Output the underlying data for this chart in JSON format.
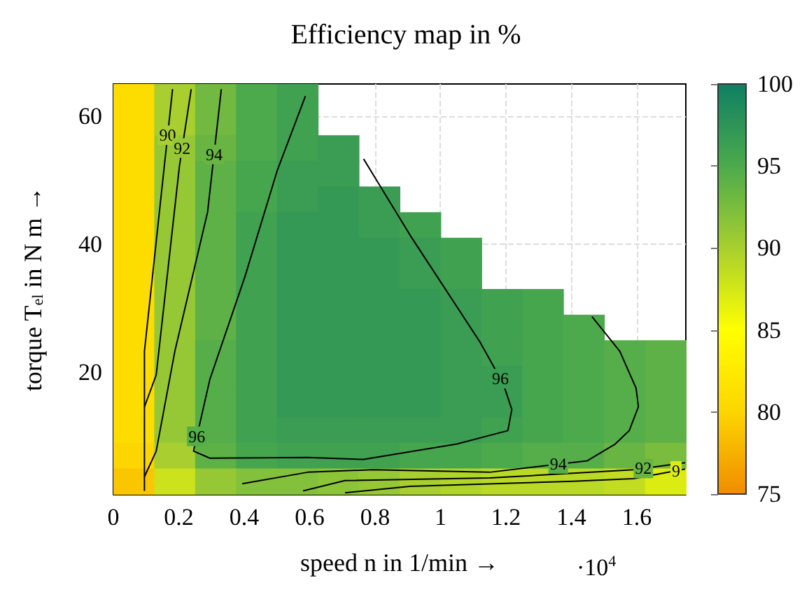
{
  "chart_data": {
    "type": "heatmap",
    "title": "Efficiency map in %",
    "xlabel": "speed n in 1/min →",
    "ylabel": "torque T$_{el}$ in N m →",
    "x": [
      0.0625,
      0.1875,
      0.3125,
      0.4375,
      0.5625,
      0.6875,
      0.8125,
      0.9375,
      1.0625,
      1.1875,
      1.3125,
      1.4375,
      1.5625,
      1.6875
    ],
    "y": [
      63,
      59,
      55,
      51,
      47,
      43,
      39,
      35,
      31,
      27,
      23,
      19,
      15,
      11,
      7,
      3
    ],
    "cells": [
      [
        81,
        90,
        93,
        95,
        96,
        null,
        null,
        null,
        null,
        null,
        null,
        null,
        null,
        null
      ],
      [
        81,
        90,
        93,
        95,
        96,
        null,
        null,
        null,
        null,
        null,
        null,
        null,
        null,
        null
      ],
      [
        81,
        91,
        93.5,
        95,
        96,
        96.5,
        null,
        null,
        null,
        null,
        null,
        null,
        null,
        null
      ],
      [
        81,
        91,
        94,
        95.5,
        96.5,
        96.5,
        null,
        null,
        null,
        null,
        null,
        null,
        null,
        null
      ],
      [
        81,
        91,
        94,
        95.5,
        96.5,
        97,
        96.5,
        null,
        null,
        null,
        null,
        null,
        null,
        null
      ],
      [
        81,
        91,
        94,
        96,
        97,
        97,
        96.5,
        96,
        null,
        null,
        null,
        null,
        null,
        null
      ],
      [
        81,
        91,
        94,
        96,
        97,
        97,
        97,
        96.5,
        96,
        null,
        null,
        null,
        null,
        null
      ],
      [
        81,
        91,
        94,
        96,
        97,
        97,
        97,
        96.5,
        96,
        null,
        null,
        null,
        null,
        null
      ],
      [
        81,
        91,
        94,
        96,
        97,
        97,
        97,
        97,
        96.5,
        96,
        95.5,
        null,
        null,
        null
      ],
      [
        81,
        91,
        94,
        96,
        97,
        97,
        97,
        97,
        96.5,
        96,
        95.5,
        95,
        null,
        null
      ],
      [
        81,
        91,
        94.5,
        96,
        97,
        97,
        97,
        97,
        96.5,
        96,
        95.5,
        95,
        94.5,
        94
      ],
      [
        81,
        91,
        94.5,
        96,
        97,
        97,
        97,
        97,
        96.5,
        96.5,
        95.5,
        95,
        94.5,
        94
      ],
      [
        81,
        91,
        94.5,
        96,
        97,
        97,
        97,
        97,
        96.5,
        96.5,
        95.5,
        95,
        94.5,
        94
      ],
      [
        81,
        91,
        94.5,
        96,
        96.5,
        96.5,
        96.5,
        96.5,
        96.5,
        96,
        95.5,
        95,
        94.5,
        94
      ],
      [
        80,
        90,
        94,
        95.5,
        96,
        96,
        96,
        95.5,
        95.5,
        95,
        94.5,
        94.5,
        93.5,
        92.5
      ],
      [
        79,
        88,
        91,
        92,
        92,
        91.5,
        91,
        90,
        89.5,
        89,
        89,
        89,
        88.5,
        87
      ]
    ],
    "clim": [
      75,
      100
    ],
    "cticks": [
      75,
      80,
      85,
      90,
      95,
      100
    ],
    "xlim": [
      0,
      1.75
    ],
    "xticks": [
      0,
      0.2,
      0.4,
      0.6,
      0.8,
      1,
      1.2,
      1.4,
      1.6
    ],
    "ylim": [
      1,
      65
    ],
    "yticks": [
      20,
      40,
      60
    ],
    "grid": true,
    "series": [
      {
        "type": "line",
        "color": "#000000",
        "x": [
          0.095,
          0.095,
          0.181
        ],
        "values": [
          1.5,
          23.3,
          64.2
        ]
      },
      {
        "type": "line",
        "color": "#000000",
        "x": [
          0.095,
          0.131,
          0.202,
          0.238
        ],
        "values": [
          14.6,
          19.6,
          52.2,
          64.2
        ]
      },
      {
        "type": "line",
        "color": "#000000",
        "x": [
          0.095,
          0.131,
          0.188,
          0.288,
          0.33
        ],
        "values": [
          3.7,
          7.7,
          23.3,
          45,
          64.2
        ]
      },
      {
        "type": "line",
        "color": "#000000",
        "x": [
          0.587,
          0.501,
          0.402,
          0.295,
          0.245,
          0.295,
          0.594,
          0.765,
          1.05,
          1.206,
          1.218,
          1.192,
          1.121,
          0.907,
          0.765
        ],
        "values": [
          63.1,
          51.5,
          34.9,
          18.9,
          7.7,
          6.6,
          6.7,
          6.4,
          8.8,
          10.9,
          14.2,
          18.2,
          24.7,
          41.4,
          53.3
        ]
      },
      {
        "type": "line",
        "color": "#000000",
        "x": [
          1.463,
          1.548,
          1.598,
          1.605,
          1.577,
          1.534,
          1.449,
          1.15,
          0.794,
          0.594,
          0.394
        ],
        "values": [
          28.7,
          23.3,
          17.5,
          14.6,
          10.9,
          8.8,
          6.2,
          4.4,
          4.8,
          4.4,
          2.6
        ]
      },
      {
        "type": "line",
        "color": "#000000",
        "x": [
          0.58,
          0.708,
          1.15,
          1.591,
          1.748
        ],
        "values": [
          1.5,
          3.1,
          3.5,
          4.8,
          5.9
        ]
      },
      {
        "type": "line",
        "color": "#000000",
        "x": [
          0.708,
          0.907,
          1.406,
          1.591,
          1.748
        ],
        "values": [
          1.2,
          2.2,
          3.0,
          3.4,
          4.9
        ]
      }
    ],
    "marker": "none",
    "line_style": "solid",
    "annotations": [
      {
        "text": "90",
        "x": 0.166,
        "y": 57
      },
      {
        "text": "92",
        "x": 0.21,
        "y": 55
      },
      {
        "text": "94",
        "x": 0.308,
        "y": 54
      },
      {
        "text": "96",
        "x": 1.183,
        "y": 19
      },
      {
        "text": "96",
        "x": 0.255,
        "y": 10
      },
      {
        "text": "94",
        "x": 1.36,
        "y": 5.7
      },
      {
        "text": "92",
        "x": 1.62,
        "y": 5
      },
      {
        "text": "9",
        "x": 1.72,
        "y": 4.6
      },
      "·10$^{4}$"
    ]
  }
}
